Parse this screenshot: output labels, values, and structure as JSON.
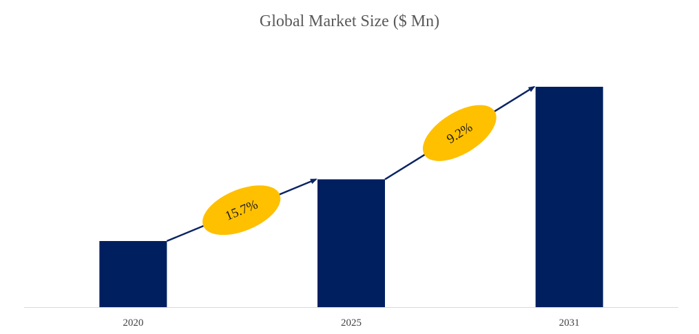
{
  "chart_data": {
    "type": "bar",
    "title": "Global Market Size ($ Mn)",
    "xlabel": "",
    "ylabel": "",
    "categories": [
      "2020",
      "2025",
      "2031"
    ],
    "values": [
      30,
      58,
      100
    ],
    "ylim": [
      0,
      100
    ],
    "grid": false,
    "legend": "none",
    "annotations": [
      {
        "from": "2020",
        "to": "2025",
        "label": "15.7%"
      },
      {
        "from": "2025",
        "to": "2031",
        "label": "9.2%"
      }
    ],
    "colors": {
      "bar": "#001f5f",
      "arrow": "#0b2463",
      "badge": "#ffc000",
      "axis": "#d9d9d9"
    }
  }
}
